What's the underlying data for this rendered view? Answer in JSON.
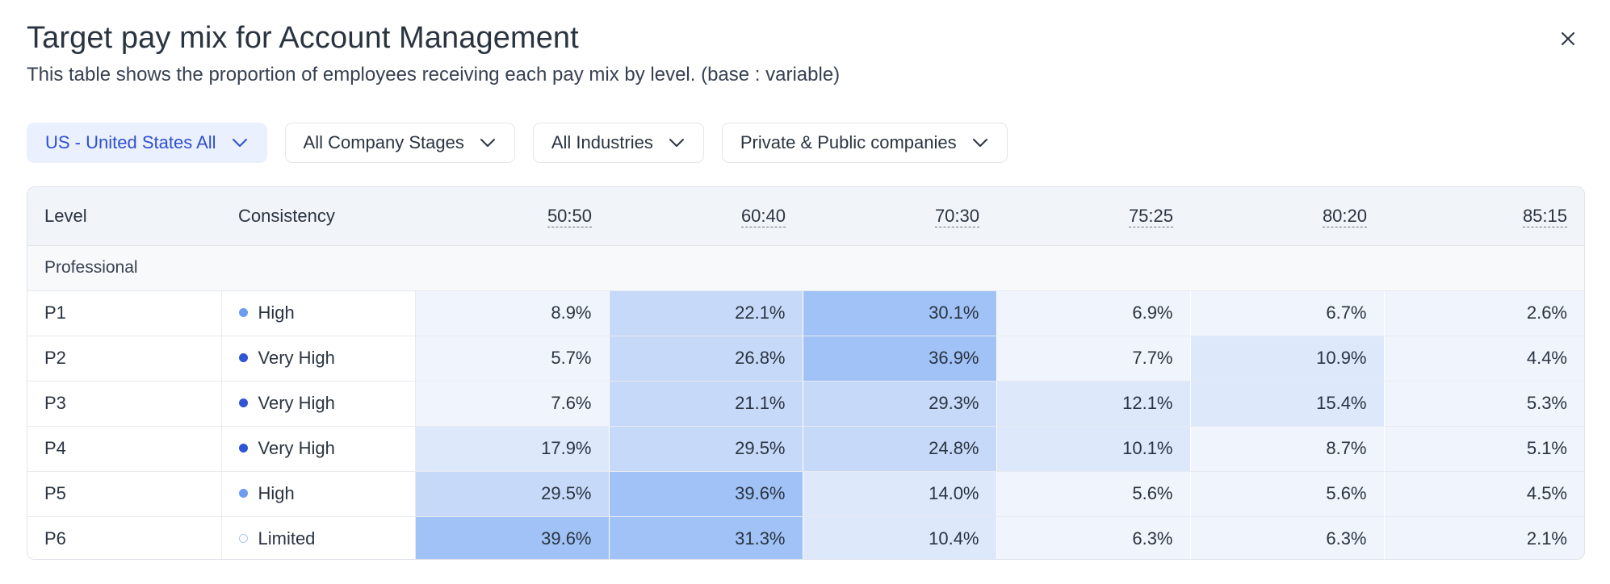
{
  "header": {
    "title": "Target pay mix for Account Management",
    "subtitle": "This table shows the proportion of employees receiving each pay mix by level. (base : variable)"
  },
  "icons": {
    "close": "close-icon",
    "chevron": "chevron-down-icon"
  },
  "colors": {
    "accent": "#2f4fd0",
    "filter_active_bg": "#eaf0fd",
    "heat_1": "#f0f4fd",
    "heat_2": "#dde8fb",
    "heat_3": "#c7d9f8",
    "heat_4": "#a0c2f6",
    "dot_high": "#6b9cf0",
    "dot_very_high": "#2f55d4"
  },
  "filters": [
    {
      "label": "US - United States All",
      "active": true
    },
    {
      "label": "All Company Stages",
      "active": false
    },
    {
      "label": "All Industries",
      "active": false
    },
    {
      "label": "Private & Public companies",
      "active": false
    }
  ],
  "table": {
    "columns": {
      "level": "Level",
      "consistency": "Consistency",
      "mixes": [
        "50:50",
        "60:40",
        "70:30",
        "75:25",
        "80:20",
        "85:15"
      ]
    },
    "group_label": "Professional",
    "rows": [
      {
        "level": "P1",
        "consistency": "High",
        "values": [
          "8.9%",
          "22.1%",
          "30.1%",
          "6.9%",
          "6.7%",
          "2.6%"
        ]
      },
      {
        "level": "P2",
        "consistency": "Very High",
        "values": [
          "5.7%",
          "26.8%",
          "36.9%",
          "7.7%",
          "10.9%",
          "4.4%"
        ]
      },
      {
        "level": "P3",
        "consistency": "Very High",
        "values": [
          "7.6%",
          "21.1%",
          "29.3%",
          "12.1%",
          "15.4%",
          "5.3%"
        ]
      },
      {
        "level": "P4",
        "consistency": "Very High",
        "values": [
          "17.9%",
          "29.5%",
          "24.8%",
          "10.1%",
          "8.7%",
          "5.1%"
        ]
      },
      {
        "level": "P5",
        "consistency": "High",
        "values": [
          "29.5%",
          "39.6%",
          "14.0%",
          "5.6%",
          "5.6%",
          "4.5%"
        ]
      },
      {
        "level": "P6",
        "consistency": "Limited",
        "values": [
          "39.6%",
          "31.3%",
          "10.4%",
          "6.3%",
          "6.3%",
          "2.1%"
        ]
      }
    ]
  }
}
